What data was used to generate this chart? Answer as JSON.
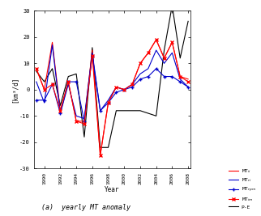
{
  "years": [
    1989,
    1990,
    1991,
    1992,
    1993,
    1994,
    1995,
    1996,
    1997,
    1998,
    1999,
    2000,
    2001,
    2002,
    2003,
    2004,
    2005,
    2006,
    2007,
    2008
  ],
  "MT_ii": [
    8,
    0,
    18,
    -8,
    3,
    -12,
    -12,
    15,
    -25,
    -5,
    1,
    0,
    2,
    10,
    14,
    19,
    12,
    18,
    5,
    4
  ],
  "MT_ri": [
    3,
    -5,
    17,
    -9,
    2,
    -10,
    -11,
    14,
    -8,
    -4,
    1,
    0,
    2,
    6,
    8,
    15,
    10,
    14,
    4,
    1
  ],
  "MT_rpm": [
    -4,
    -4,
    2,
    -9,
    3,
    3,
    -12,
    13,
    -8,
    -5,
    -1,
    0,
    1,
    4,
    5,
    8,
    5,
    5,
    3,
    1
  ],
  "MT_im": [
    8,
    0,
    2,
    -8,
    3,
    -12,
    -13,
    13,
    -25,
    -5,
    1,
    0,
    2,
    10,
    14,
    19,
    12,
    18,
    5,
    3
  ],
  "PE": [
    7,
    3,
    8,
    -6,
    5,
    6,
    -18,
    16,
    -22,
    -22,
    -8,
    -8,
    -8,
    -8,
    -9,
    -10,
    15,
    32,
    12,
    26
  ],
  "ylabel": "[km³/d]",
  "xlabel": "Year",
  "caption": "(a)  yearly MT anomaly",
  "ylim": [
    -30,
    30
  ],
  "xlim": [
    1989,
    2008
  ],
  "yticks": [
    -30,
    -20,
    -10,
    0,
    10,
    20,
    30
  ],
  "xticks": [
    1990,
    1992,
    1994,
    1996,
    1998,
    2000,
    2002,
    2004,
    2006,
    2008
  ],
  "colors": {
    "MT_ii": "#ff0000",
    "MT_ri": "#0000cc",
    "MT_rpm": "#0000cc",
    "MT_im": "#ff0000",
    "PE": "#000000"
  },
  "legend_labels": [
    "MT$_{ii}$",
    "MT$_{ri}$",
    "MT$_{rpm}$",
    "MT$_{im}$",
    "P-E"
  ]
}
